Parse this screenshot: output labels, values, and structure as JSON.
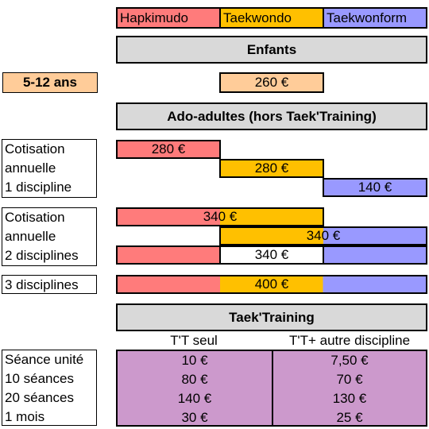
{
  "disciplines": {
    "hapkimudo": "Hapkimudo",
    "taekwondo": "Taekwondo",
    "taekwonform": "Taekwonform"
  },
  "enfants": {
    "title": "Enfants",
    "age_label": "5-12 ans",
    "price": "260 €"
  },
  "ado": {
    "title": "Ado-adultes (hors Taek'Training)",
    "one": {
      "label": [
        "Cotisation",
        "annuelle",
        "1 discipline"
      ],
      "hapkimudo": "280 €",
      "taekwondo": "280 €",
      "taekwonform": "140 €"
    },
    "two": {
      "label": [
        "Cotisation",
        "annuelle",
        "2 disciplines"
      ],
      "hap_taek": "340 €",
      "taek_form": "340 €",
      "hap_form": "340 €"
    },
    "three": {
      "label": "3 disciplines",
      "price": "400 €"
    }
  },
  "taektraining": {
    "title": "Taek'Training",
    "col_seul": "T'T seul",
    "col_autre": "T'T+ autre discipline",
    "rows": [
      {
        "label": "Séance unité",
        "seul": "10 €",
        "autre": "7,50 €"
      },
      {
        "label": "10 séances",
        "seul": "80 €",
        "autre": "70 €"
      },
      {
        "label": "20 séances",
        "seul": "140 €",
        "autre": "130 €"
      },
      {
        "label": "1 mois",
        "seul": "30 €",
        "autre": "25 €"
      }
    ]
  }
}
